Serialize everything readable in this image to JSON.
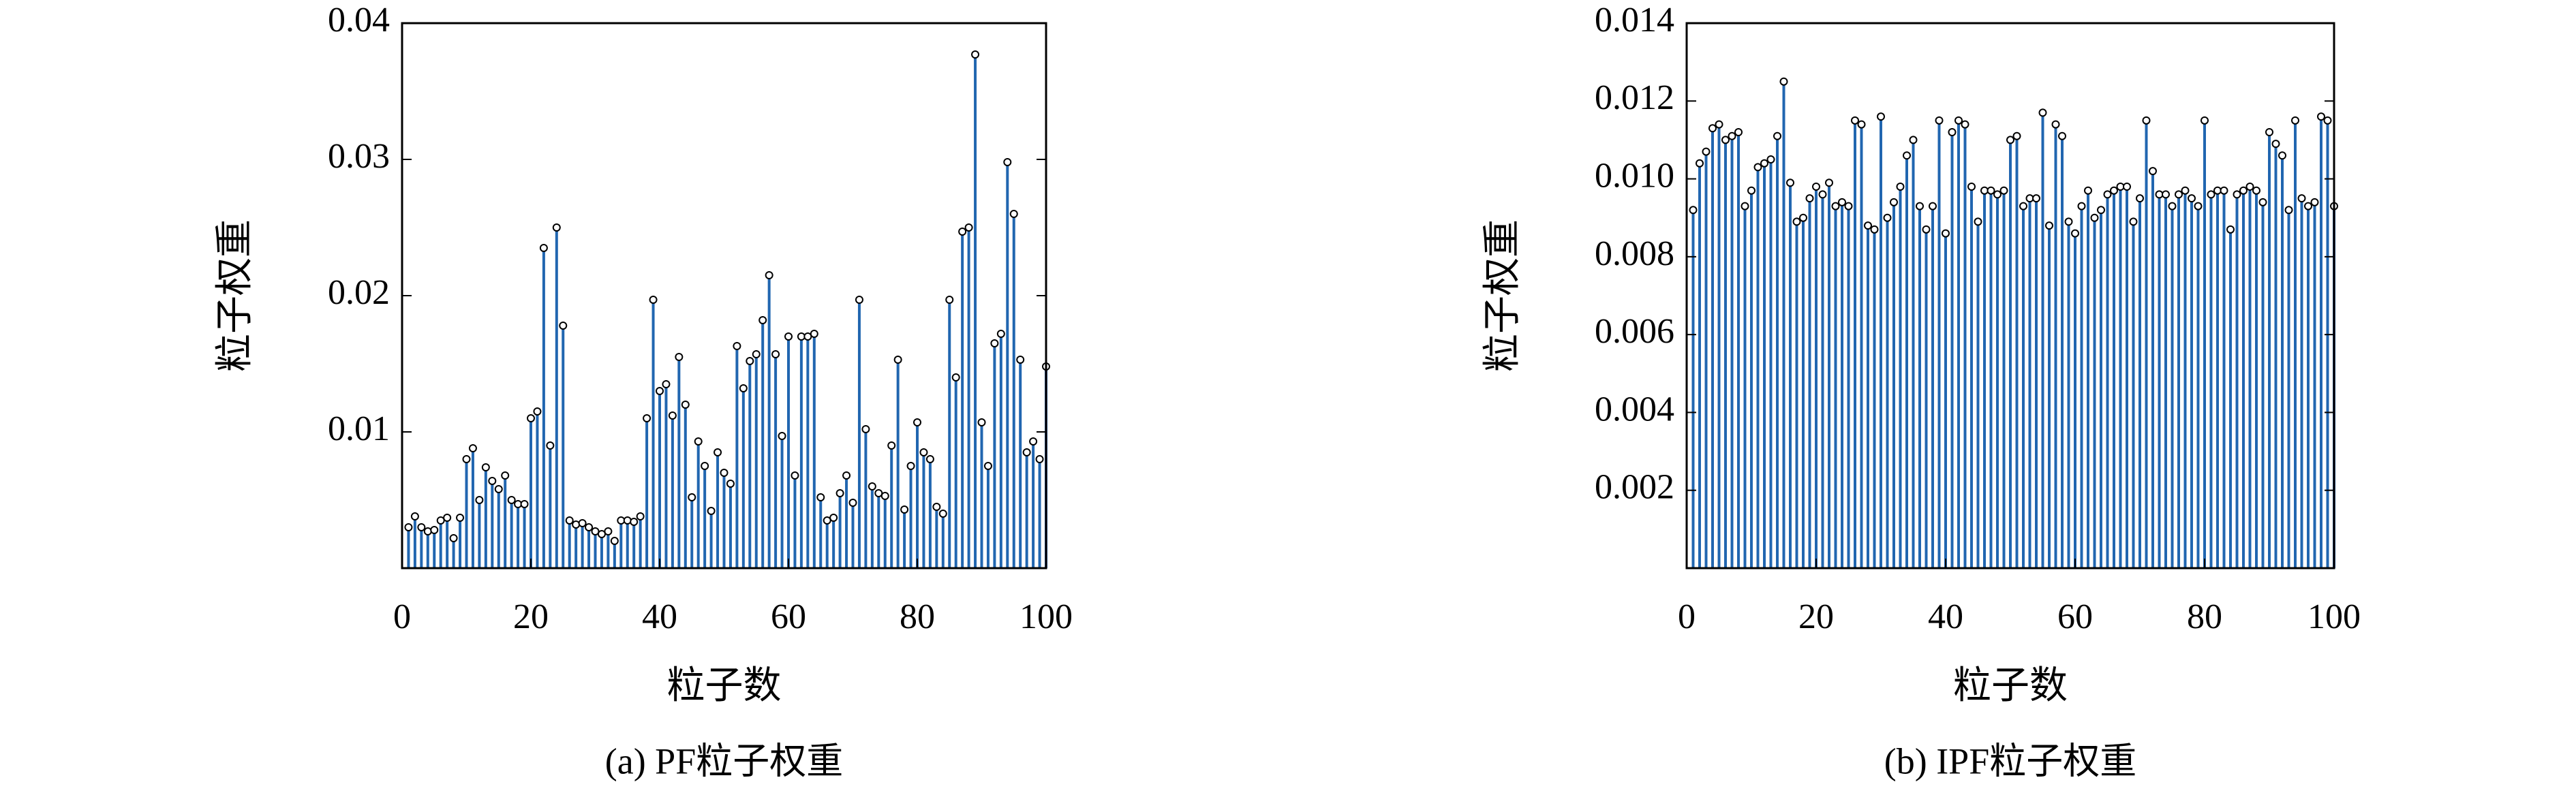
{
  "chart_data": [
    {
      "type": "stem",
      "caption": "(a) PF粒子权重",
      "xlabel": "粒子数",
      "ylabel": "粒子权重",
      "color": "#2166b0",
      "x": [
        1,
        2,
        3,
        4,
        5,
        6,
        7,
        8,
        9,
        10,
        11,
        12,
        13,
        14,
        15,
        16,
        17,
        18,
        19,
        20,
        21,
        22,
        23,
        24,
        25,
        26,
        27,
        28,
        29,
        30,
        31,
        32,
        33,
        34,
        35,
        36,
        37,
        38,
        39,
        40,
        41,
        42,
        43,
        44,
        45,
        46,
        47,
        48,
        49,
        50,
        51,
        52,
        53,
        54,
        55,
        56,
        57,
        58,
        59,
        60,
        61,
        62,
        63,
        64,
        65,
        66,
        67,
        68,
        69,
        70,
        71,
        72,
        73,
        74,
        75,
        76,
        77,
        78,
        79,
        80,
        81,
        82,
        83,
        84,
        85,
        86,
        87,
        88,
        89,
        90,
        91,
        92,
        93,
        94,
        95,
        96,
        97,
        98,
        99,
        100
      ],
      "values": [
        0.003,
        0.0038,
        0.003,
        0.0027,
        0.0028,
        0.0035,
        0.0037,
        0.0022,
        0.0037,
        0.008,
        0.0088,
        0.005,
        0.0074,
        0.0064,
        0.0058,
        0.0068,
        0.005,
        0.0047,
        0.0047,
        0.011,
        0.0115,
        0.0235,
        0.009,
        0.025,
        0.0178,
        0.0035,
        0.0032,
        0.0033,
        0.003,
        0.0027,
        0.0025,
        0.0027,
        0.002,
        0.0035,
        0.0035,
        0.0034,
        0.0038,
        0.011,
        0.0197,
        0.013,
        0.0135,
        0.0112,
        0.0155,
        0.012,
        0.0052,
        0.0093,
        0.0075,
        0.0042,
        0.0085,
        0.007,
        0.0062,
        0.0163,
        0.0132,
        0.0152,
        0.0157,
        0.0182,
        0.0215,
        0.0157,
        0.0097,
        0.017,
        0.0068,
        0.017,
        0.017,
        0.0172,
        0.0052,
        0.0035,
        0.0037,
        0.0055,
        0.0068,
        0.0048,
        0.0197,
        0.0102,
        0.006,
        0.0055,
        0.0053,
        0.009,
        0.0153,
        0.0043,
        0.0075,
        0.0107,
        0.0085,
        0.008,
        0.0045,
        0.004,
        0.0197,
        0.014,
        0.0247,
        0.025,
        0.0377,
        0.0107,
        0.0075,
        0.0165,
        0.0172,
        0.0298,
        0.026,
        0.0153,
        0.0085,
        0.0093,
        0.008,
        0.0148
      ],
      "xlim": [
        0,
        100
      ],
      "xticks": [
        0,
        20,
        40,
        60,
        80,
        100
      ],
      "ylim": [
        0,
        0.04
      ],
      "yticks": [
        0.01,
        0.02,
        0.03,
        0.04
      ]
    },
    {
      "type": "stem",
      "caption": "(b) IPF粒子权重",
      "xlabel": "粒子数",
      "ylabel": "粒子权重",
      "color": "#2166b0",
      "x": [
        1,
        2,
        3,
        4,
        5,
        6,
        7,
        8,
        9,
        10,
        11,
        12,
        13,
        14,
        15,
        16,
        17,
        18,
        19,
        20,
        21,
        22,
        23,
        24,
        25,
        26,
        27,
        28,
        29,
        30,
        31,
        32,
        33,
        34,
        35,
        36,
        37,
        38,
        39,
        40,
        41,
        42,
        43,
        44,
        45,
        46,
        47,
        48,
        49,
        50,
        51,
        52,
        53,
        54,
        55,
        56,
        57,
        58,
        59,
        60,
        61,
        62,
        63,
        64,
        65,
        66,
        67,
        68,
        69,
        70,
        71,
        72,
        73,
        74,
        75,
        76,
        77,
        78,
        79,
        80,
        81,
        82,
        83,
        84,
        85,
        86,
        87,
        88,
        89,
        90,
        91,
        92,
        93,
        94,
        95,
        96,
        97,
        98,
        99,
        100
      ],
      "values": [
        0.0092,
        0.0104,
        0.0107,
        0.0113,
        0.0114,
        0.011,
        0.0111,
        0.0112,
        0.0093,
        0.0097,
        0.0103,
        0.0104,
        0.0105,
        0.0111,
        0.0125,
        0.0099,
        0.0089,
        0.009,
        0.0095,
        0.0098,
        0.0096,
        0.0099,
        0.0093,
        0.0094,
        0.0093,
        0.0115,
        0.0114,
        0.0088,
        0.0087,
        0.0116,
        0.009,
        0.0094,
        0.0098,
        0.0106,
        0.011,
        0.0093,
        0.0087,
        0.0093,
        0.0115,
        0.0086,
        0.0112,
        0.0115,
        0.0114,
        0.0098,
        0.0089,
        0.0097,
        0.0097,
        0.0096,
        0.0097,
        0.011,
        0.0111,
        0.0093,
        0.0095,
        0.0095,
        0.0117,
        0.0088,
        0.0114,
        0.0111,
        0.0089,
        0.0086,
        0.0093,
        0.0097,
        0.009,
        0.0092,
        0.0096,
        0.0097,
        0.0098,
        0.0098,
        0.0089,
        0.0095,
        0.0115,
        0.0102,
        0.0096,
        0.0096,
        0.0093,
        0.0096,
        0.0097,
        0.0095,
        0.0093,
        0.0115,
        0.0096,
        0.0097,
        0.0097,
        0.0087,
        0.0096,
        0.0097,
        0.0098,
        0.0097,
        0.0094,
        0.0112,
        0.0109,
        0.0106,
        0.0092,
        0.0115,
        0.0095,
        0.0093,
        0.0094,
        0.0116,
        0.0115,
        0.0093
      ],
      "xlim": [
        0,
        100
      ],
      "xticks": [
        0,
        20,
        40,
        60,
        80,
        100
      ],
      "ylim": [
        0,
        0.014
      ],
      "yticks": [
        0.002,
        0.004,
        0.006,
        0.008,
        {
          "value": 0.01,
          "label": "0.010"
        },
        0.012,
        0.014
      ]
    }
  ]
}
